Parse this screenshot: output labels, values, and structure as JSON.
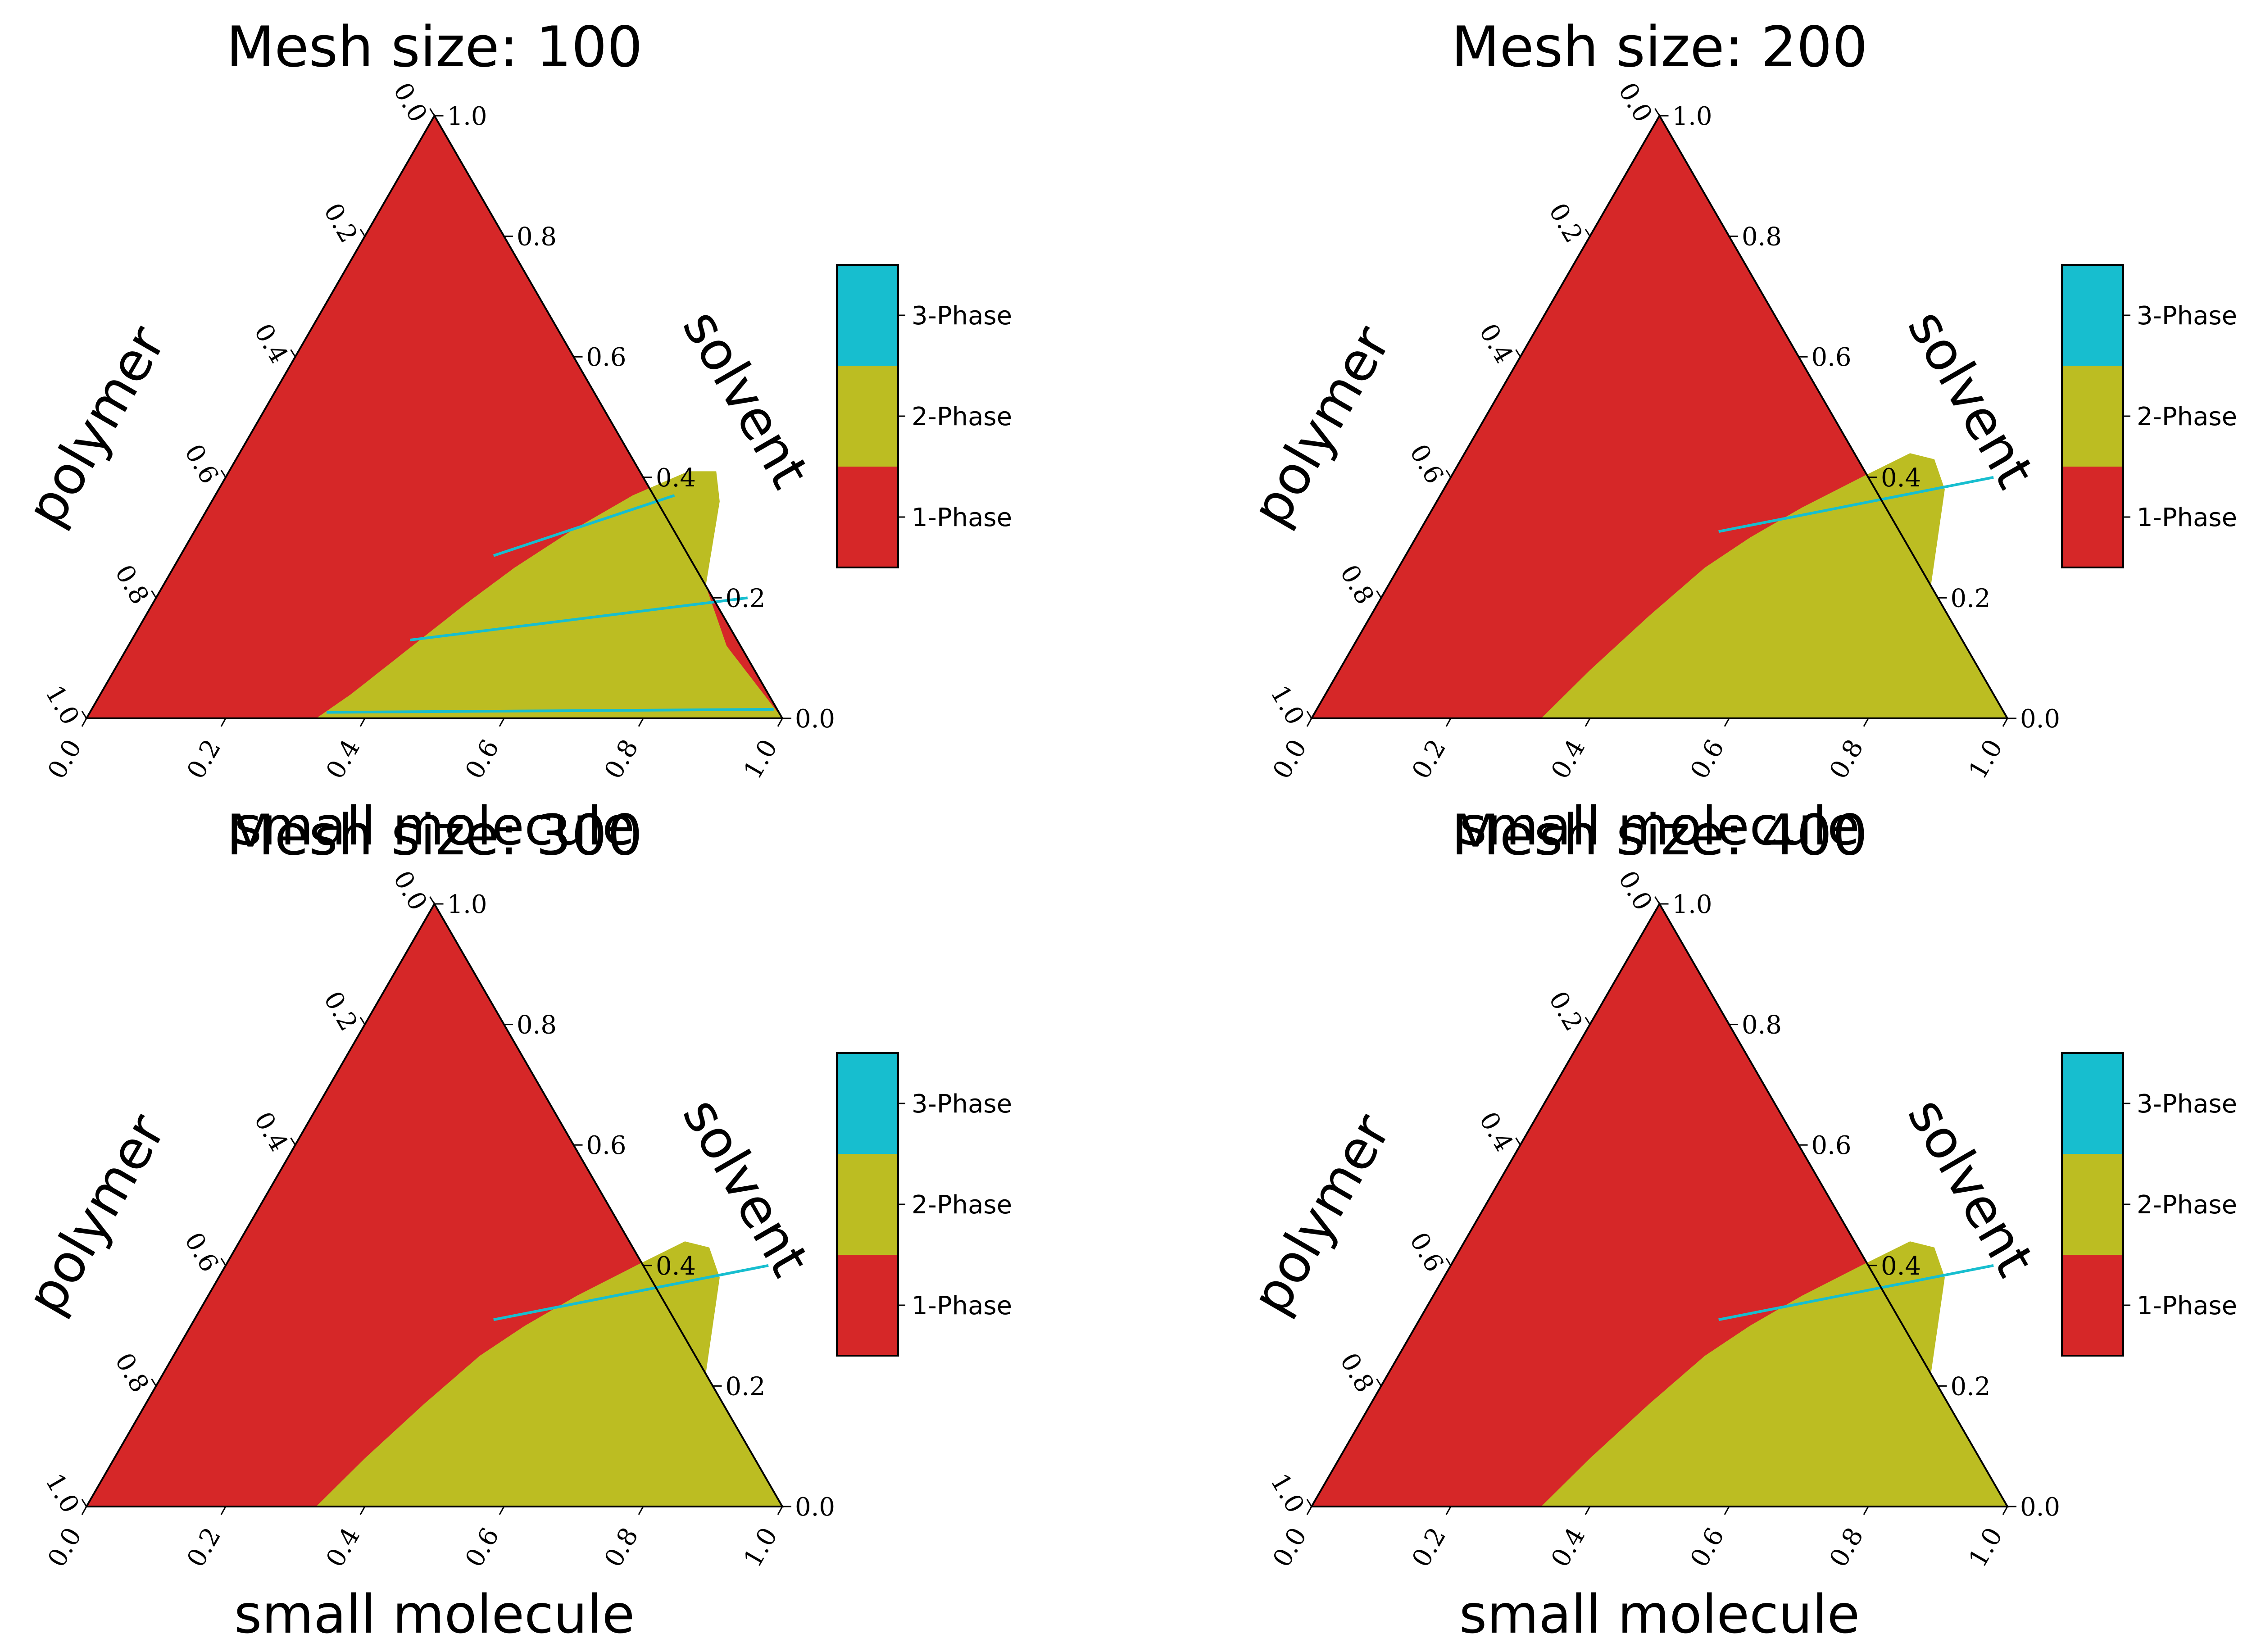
{
  "colors": {
    "one_phase": "#d62728",
    "two_phase": "#bcbd22",
    "three_phase": "#17becf",
    "axis": "#000000"
  },
  "legend": {
    "entries": [
      "3-Phase",
      "2-Phase",
      "1-Phase"
    ]
  },
  "chart_data": [
    {
      "type": "heatmap",
      "title": "Mesh size: 100",
      "xlabel": "small molecule",
      "left_label": "polymer",
      "right_label": "solvent",
      "bottom_ticks": [
        "0.0",
        "0.2",
        "0.4",
        "0.6",
        "0.8",
        "1.0"
      ],
      "left_ticks": [
        "0.0",
        "0.2",
        "0.4",
        "0.6",
        "0.8",
        "1.0"
      ],
      "right_ticks": [
        "0.0",
        "0.2",
        "0.4",
        "0.6",
        "0.8",
        "1.0"
      ],
      "categories": [
        "1-Phase",
        "2-Phase",
        "3-Phase"
      ],
      "two_phase_region": [
        [
          0.33,
          0.0
        ],
        [
          0.36,
          0.04
        ],
        [
          0.39,
          0.09
        ],
        [
          0.42,
          0.14
        ],
        [
          0.45,
          0.19
        ],
        [
          0.49,
          0.25
        ],
        [
          0.54,
          0.31
        ],
        [
          0.6,
          0.37
        ],
        [
          0.66,
          0.41
        ],
        [
          0.7,
          0.41
        ],
        [
          0.73,
          0.36
        ],
        [
          0.78,
          0.22
        ],
        [
          0.86,
          0.12
        ],
        [
          1.0,
          0.0
        ]
      ],
      "three_phase_tielines": [
        [
          [
            0.45,
            0.27
          ],
          [
            0.66,
            0.37
          ]
        ],
        [
          [
            0.4,
            0.13
          ],
          [
            0.85,
            0.2
          ]
        ],
        [
          [
            0.34,
            0.01
          ],
          [
            0.98,
            0.015
          ]
        ]
      ]
    },
    {
      "type": "heatmap",
      "title": "Mesh size: 200",
      "xlabel": "small molecule",
      "left_label": "polymer",
      "right_label": "solvent",
      "bottom_ticks": [
        "0.0",
        "0.2",
        "0.4",
        "0.6",
        "0.8",
        "1.0"
      ],
      "left_ticks": [
        "0.0",
        "0.2",
        "0.4",
        "0.6",
        "0.8",
        "1.0"
      ],
      "right_ticks": [
        "0.0",
        "0.2",
        "0.4",
        "0.6",
        "0.8",
        "1.0"
      ],
      "categories": [
        "1-Phase",
        "2-Phase",
        "3-Phase"
      ],
      "two_phase_region": [
        [
          0.33,
          0.0
        ],
        [
          0.36,
          0.08
        ],
        [
          0.4,
          0.17
        ],
        [
          0.44,
          0.25
        ],
        [
          0.48,
          0.3
        ],
        [
          0.53,
          0.35
        ],
        [
          0.59,
          0.4
        ],
        [
          0.64,
          0.44
        ],
        [
          0.68,
          0.43
        ],
        [
          0.72,
          0.38
        ],
        [
          0.78,
          0.22
        ],
        [
          1.0,
          0.0
        ]
      ],
      "three_phase_tielines": [
        [
          [
            0.43,
            0.31
          ],
          [
            0.78,
            0.4
          ]
        ]
      ]
    },
    {
      "type": "heatmap",
      "title": "Mesh size: 300",
      "xlabel": "small molecule",
      "left_label": "polymer",
      "right_label": "solvent",
      "bottom_ticks": [
        "0.0",
        "0.2",
        "0.4",
        "0.6",
        "0.8",
        "1.0"
      ],
      "left_ticks": [
        "0.0",
        "0.2",
        "0.4",
        "0.6",
        "0.8",
        "1.0"
      ],
      "right_ticks": [
        "0.0",
        "0.2",
        "0.4",
        "0.6",
        "0.8",
        "1.0"
      ],
      "categories": [
        "1-Phase",
        "2-Phase",
        "3-Phase"
      ],
      "two_phase_region": [
        [
          0.33,
          0.0
        ],
        [
          0.36,
          0.08
        ],
        [
          0.4,
          0.17
        ],
        [
          0.44,
          0.25
        ],
        [
          0.48,
          0.3
        ],
        [
          0.53,
          0.35
        ],
        [
          0.59,
          0.4
        ],
        [
          0.64,
          0.44
        ],
        [
          0.68,
          0.43
        ],
        [
          0.72,
          0.38
        ],
        [
          0.78,
          0.22
        ],
        [
          1.0,
          0.0
        ]
      ],
      "three_phase_tielines": [
        [
          [
            0.43,
            0.31
          ],
          [
            0.78,
            0.4
          ]
        ]
      ]
    },
    {
      "type": "heatmap",
      "title": "Mesh size: 400",
      "xlabel": "small molecule",
      "left_label": "polymer",
      "right_label": "solvent",
      "bottom_ticks": [
        "0.0",
        "0.2",
        "0.4",
        "0.6",
        "0.8",
        "1.0"
      ],
      "left_ticks": [
        "0.0",
        "0.2",
        "0.4",
        "0.6",
        "0.8",
        "1.0"
      ],
      "right_ticks": [
        "0.0",
        "0.2",
        "0.4",
        "0.6",
        "0.8",
        "1.0"
      ],
      "categories": [
        "1-Phase",
        "2-Phase",
        "3-Phase"
      ],
      "two_phase_region": [
        [
          0.33,
          0.0
        ],
        [
          0.36,
          0.08
        ],
        [
          0.4,
          0.17
        ],
        [
          0.44,
          0.25
        ],
        [
          0.48,
          0.3
        ],
        [
          0.53,
          0.35
        ],
        [
          0.59,
          0.4
        ],
        [
          0.64,
          0.44
        ],
        [
          0.68,
          0.43
        ],
        [
          0.72,
          0.38
        ],
        [
          0.78,
          0.22
        ],
        [
          1.0,
          0.0
        ]
      ],
      "three_phase_tielines": [
        [
          [
            0.43,
            0.31
          ],
          [
            0.78,
            0.4
          ]
        ]
      ]
    }
  ]
}
